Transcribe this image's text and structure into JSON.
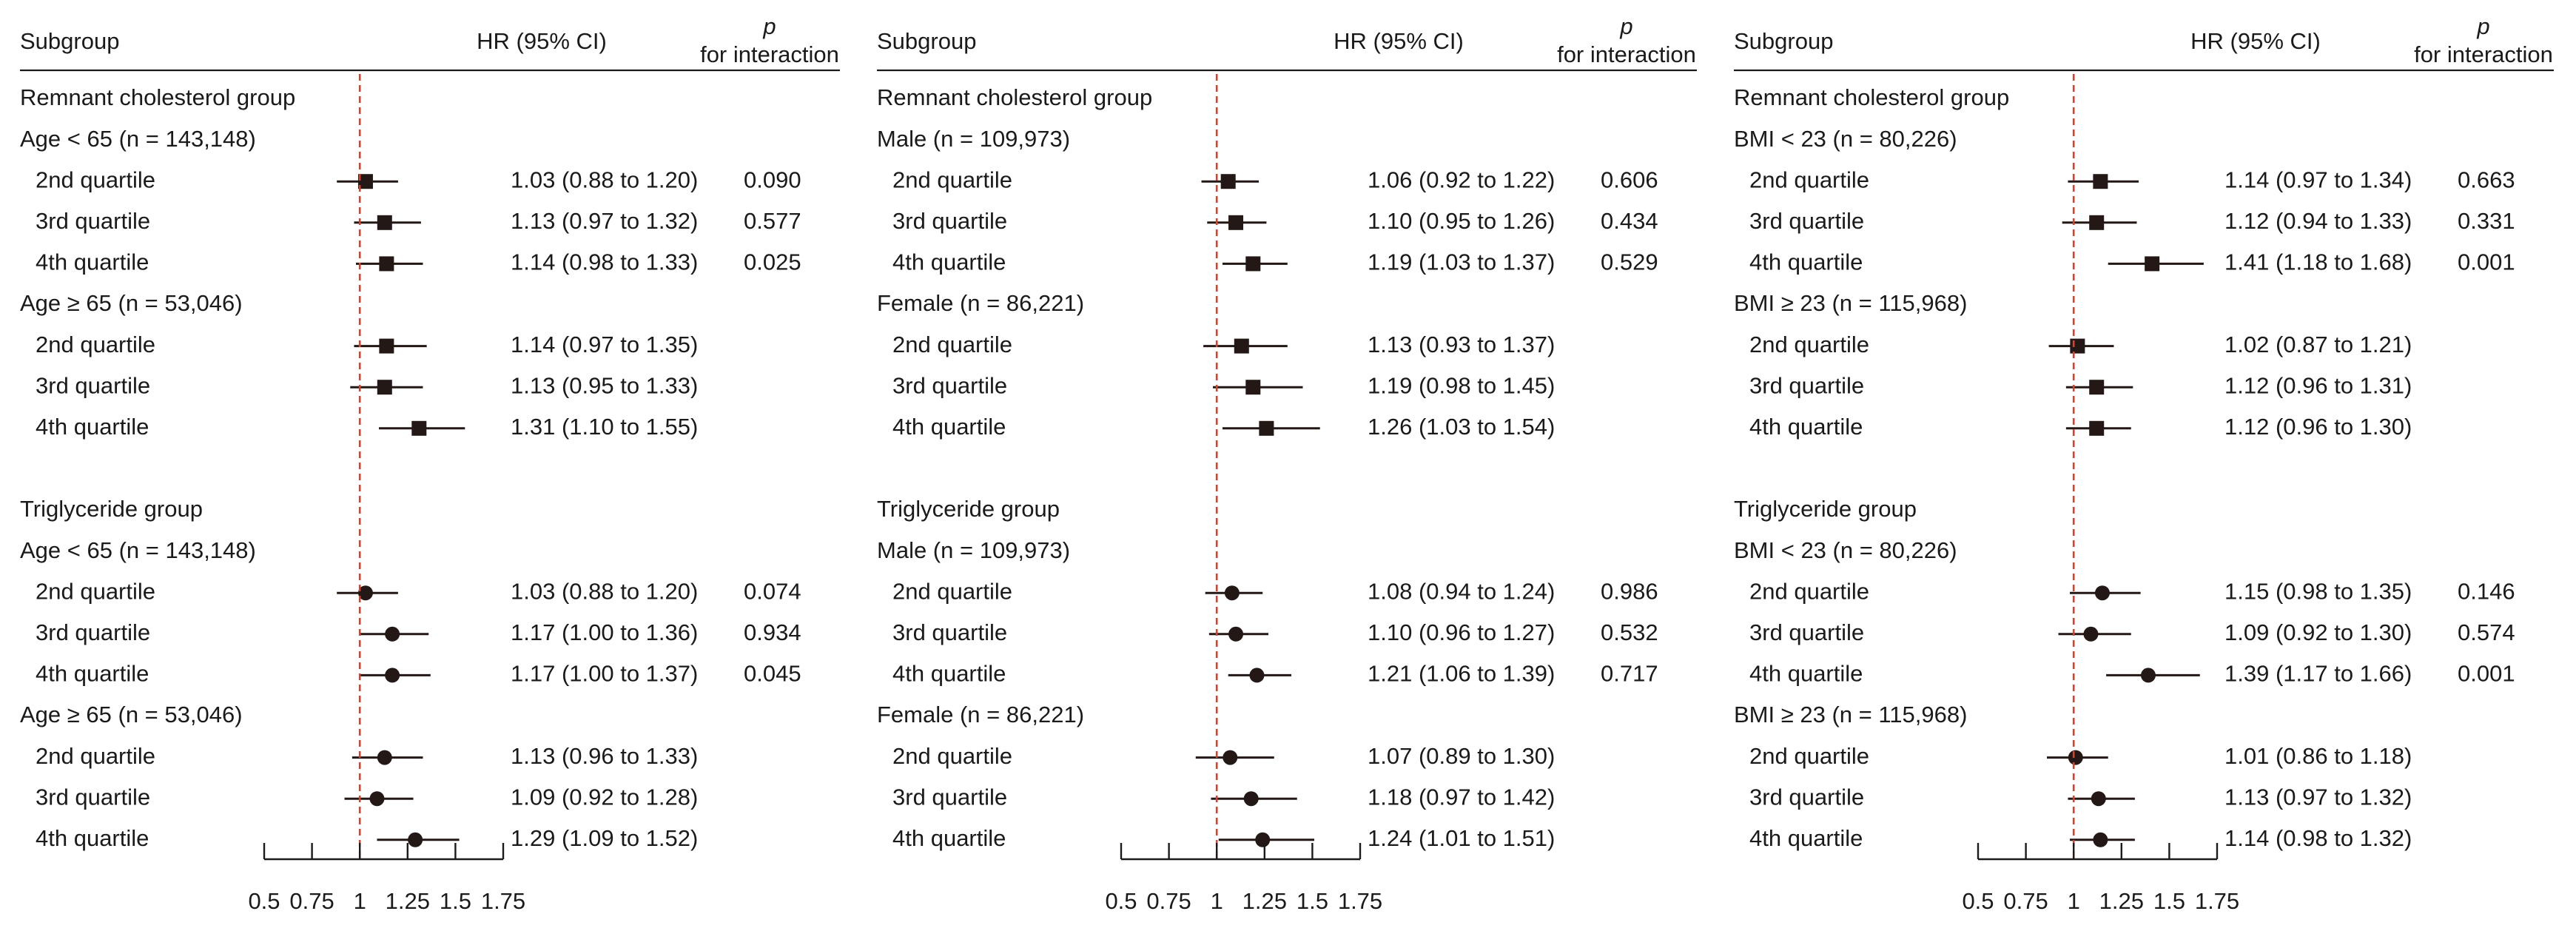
{
  "header": {
    "subgroup": "Subgroup",
    "hr": "HR (95% CI)",
    "p_symbol": "p",
    "p_label": "for interaction"
  },
  "axis_ticks": [
    "0.5",
    "0.75",
    "1",
    "1.25",
    "1.5",
    "1.75"
  ],
  "colors": {
    "reference_line": "#d9412b",
    "markers": "#231815"
  },
  "chart_data": [
    {
      "type": "forest",
      "xlim": [
        0.5,
        1.75
      ],
      "reference_value": 1,
      "rows": [
        {
          "kind": "group",
          "label": "Remnant cholesterol group"
        },
        {
          "kind": "header",
          "label": "Age < 65 (n = 143,148)"
        },
        {
          "kind": "est",
          "label": "2nd quartile",
          "marker": "square",
          "hr": 1.03,
          "lo": 0.88,
          "hi": 1.2,
          "ci": "1.03 (0.88 to 1.20)",
          "p": "0.090"
        },
        {
          "kind": "est",
          "label": "3rd quartile",
          "marker": "square",
          "hr": 1.13,
          "lo": 0.97,
          "hi": 1.32,
          "ci": "1.13 (0.97 to 1.32)",
          "p": "0.577"
        },
        {
          "kind": "est",
          "label": "4th quartile",
          "marker": "square",
          "hr": 1.14,
          "lo": 0.98,
          "hi": 1.33,
          "ci": "1.14 (0.98 to 1.33)",
          "p": "0.025"
        },
        {
          "kind": "header",
          "label": "Age ≥ 65 (n = 53,046)"
        },
        {
          "kind": "est",
          "label": "2nd quartile",
          "marker": "square",
          "hr": 1.14,
          "lo": 0.97,
          "hi": 1.35,
          "ci": "1.14 (0.97 to 1.35)",
          "p": ""
        },
        {
          "kind": "est",
          "label": "3rd quartile",
          "marker": "square",
          "hr": 1.13,
          "lo": 0.95,
          "hi": 1.33,
          "ci": "1.13 (0.95 to 1.33)",
          "p": ""
        },
        {
          "kind": "est",
          "label": "4th quartile",
          "marker": "square",
          "hr": 1.31,
          "lo": 1.1,
          "hi": 1.55,
          "ci": "1.31 (1.10 to 1.55)",
          "p": ""
        },
        {
          "kind": "blank"
        },
        {
          "kind": "group",
          "label": "Triglyceride group"
        },
        {
          "kind": "header",
          "label": "Age < 65 (n = 143,148)"
        },
        {
          "kind": "est",
          "label": "2nd quartile",
          "marker": "circle",
          "hr": 1.03,
          "lo": 0.88,
          "hi": 1.2,
          "ci": "1.03 (0.88 to 1.20)",
          "p": "0.074"
        },
        {
          "kind": "est",
          "label": "3rd quartile",
          "marker": "circle",
          "hr": 1.17,
          "lo": 1.0,
          "hi": 1.36,
          "ci": "1.17 (1.00 to 1.36)",
          "p": "0.934"
        },
        {
          "kind": "est",
          "label": "4th quartile",
          "marker": "circle",
          "hr": 1.17,
          "lo": 1.0,
          "hi": 1.37,
          "ci": "1.17 (1.00 to 1.37)",
          "p": "0.045"
        },
        {
          "kind": "header",
          "label": "Age ≥ 65 (n = 53,046)"
        },
        {
          "kind": "est",
          "label": "2nd quartile",
          "marker": "circle",
          "hr": 1.13,
          "lo": 0.96,
          "hi": 1.33,
          "ci": "1.13 (0.96 to 1.33)",
          "p": ""
        },
        {
          "kind": "est",
          "label": "3rd quartile",
          "marker": "circle",
          "hr": 1.09,
          "lo": 0.92,
          "hi": 1.28,
          "ci": "1.09 (0.92 to 1.28)",
          "p": ""
        },
        {
          "kind": "est",
          "label": "4th quartile",
          "marker": "circle",
          "hr": 1.29,
          "lo": 1.09,
          "hi": 1.52,
          "ci": "1.29 (1.09 to 1.52)",
          "p": ""
        }
      ]
    },
    {
      "type": "forest",
      "xlim": [
        0.5,
        1.75
      ],
      "reference_value": 1,
      "rows": [
        {
          "kind": "group",
          "label": "Remnant cholesterol group"
        },
        {
          "kind": "header",
          "label": "Male (n = 109,973)"
        },
        {
          "kind": "est",
          "label": "2nd quartile",
          "marker": "square",
          "hr": 1.06,
          "lo": 0.92,
          "hi": 1.22,
          "ci": "1.06 (0.92 to 1.22)",
          "p": "0.606"
        },
        {
          "kind": "est",
          "label": "3rd quartile",
          "marker": "square",
          "hr": 1.1,
          "lo": 0.95,
          "hi": 1.26,
          "ci": "1.10 (0.95 to 1.26)",
          "p": "0.434"
        },
        {
          "kind": "est",
          "label": "4th quartile",
          "marker": "square",
          "hr": 1.19,
          "lo": 1.03,
          "hi": 1.37,
          "ci": "1.19 (1.03 to 1.37)",
          "p": "0.529"
        },
        {
          "kind": "header",
          "label": "Female (n = 86,221)"
        },
        {
          "kind": "est",
          "label": "2nd quartile",
          "marker": "square",
          "hr": 1.13,
          "lo": 0.93,
          "hi": 1.37,
          "ci": "1.13 (0.93 to 1.37)",
          "p": ""
        },
        {
          "kind": "est",
          "label": "3rd quartile",
          "marker": "square",
          "hr": 1.19,
          "lo": 0.98,
          "hi": 1.45,
          "ci": "1.19 (0.98 to 1.45)",
          "p": ""
        },
        {
          "kind": "est",
          "label": "4th quartile",
          "marker": "square",
          "hr": 1.26,
          "lo": 1.03,
          "hi": 1.54,
          "ci": "1.26 (1.03 to 1.54)",
          "p": ""
        },
        {
          "kind": "blank"
        },
        {
          "kind": "group",
          "label": "Triglyceride group"
        },
        {
          "kind": "header",
          "label": "Male (n = 109,973)"
        },
        {
          "kind": "est",
          "label": "2nd quartile",
          "marker": "circle",
          "hr": 1.08,
          "lo": 0.94,
          "hi": 1.24,
          "ci": "1.08 (0.94 to 1.24)",
          "p": "0.986"
        },
        {
          "kind": "est",
          "label": "3rd quartile",
          "marker": "circle",
          "hr": 1.1,
          "lo": 0.96,
          "hi": 1.27,
          "ci": "1.10 (0.96 to 1.27)",
          "p": "0.532"
        },
        {
          "kind": "est",
          "label": "4th quartile",
          "marker": "circle",
          "hr": 1.21,
          "lo": 1.06,
          "hi": 1.39,
          "ci": "1.21 (1.06 to 1.39)",
          "p": "0.717"
        },
        {
          "kind": "header",
          "label": "Female (n = 86,221)"
        },
        {
          "kind": "est",
          "label": "2nd quartile",
          "marker": "circle",
          "hr": 1.07,
          "lo": 0.89,
          "hi": 1.3,
          "ci": "1.07 (0.89 to 1.30)",
          "p": ""
        },
        {
          "kind": "est",
          "label": "3rd quartile",
          "marker": "circle",
          "hr": 1.18,
          "lo": 0.97,
          "hi": 1.42,
          "ci": "1.18 (0.97 to 1.42)",
          "p": ""
        },
        {
          "kind": "est",
          "label": "4th quartile",
          "marker": "circle",
          "hr": 1.24,
          "lo": 1.01,
          "hi": 1.51,
          "ci": "1.24 (1.01 to 1.51)",
          "p": ""
        }
      ]
    },
    {
      "type": "forest",
      "xlim": [
        0.5,
        1.75
      ],
      "reference_value": 1,
      "rows": [
        {
          "kind": "group",
          "label": "Remnant cholesterol group"
        },
        {
          "kind": "header",
          "label": "BMI < 23 (n = 80,226)"
        },
        {
          "kind": "est",
          "label": "2nd quartile",
          "marker": "square",
          "hr": 1.14,
          "lo": 0.97,
          "hi": 1.34,
          "ci": "1.14 (0.97 to 1.34)",
          "p": "0.663"
        },
        {
          "kind": "est",
          "label": "3rd quartile",
          "marker": "square",
          "hr": 1.12,
          "lo": 0.94,
          "hi": 1.33,
          "ci": "1.12 (0.94 to 1.33)",
          "p": "0.331"
        },
        {
          "kind": "est",
          "label": "4th quartile",
          "marker": "square",
          "hr": 1.41,
          "lo": 1.18,
          "hi": 1.68,
          "ci": "1.41 (1.18 to 1.68)",
          "p": "0.001"
        },
        {
          "kind": "header",
          "label": "BMI ≥ 23 (n = 115,968)"
        },
        {
          "kind": "est",
          "label": "2nd quartile",
          "marker": "square",
          "hr": 1.02,
          "lo": 0.87,
          "hi": 1.21,
          "ci": "1.02 (0.87 to 1.21)",
          "p": ""
        },
        {
          "kind": "est",
          "label": "3rd quartile",
          "marker": "square",
          "hr": 1.12,
          "lo": 0.96,
          "hi": 1.31,
          "ci": "1.12 (0.96 to 1.31)",
          "p": ""
        },
        {
          "kind": "est",
          "label": "4th quartile",
          "marker": "square",
          "hr": 1.12,
          "lo": 0.96,
          "hi": 1.3,
          "ci": "1.12 (0.96 to 1.30)",
          "p": ""
        },
        {
          "kind": "blank"
        },
        {
          "kind": "group",
          "label": "Triglyceride group"
        },
        {
          "kind": "header",
          "label": "BMI < 23 (n = 80,226)"
        },
        {
          "kind": "est",
          "label": "2nd quartile",
          "marker": "circle",
          "hr": 1.15,
          "lo": 0.98,
          "hi": 1.35,
          "ci": "1.15 (0.98 to 1.35)",
          "p": "0.146"
        },
        {
          "kind": "est",
          "label": "3rd quartile",
          "marker": "circle",
          "hr": 1.09,
          "lo": 0.92,
          "hi": 1.3,
          "ci": "1.09 (0.92 to 1.30)",
          "p": "0.574"
        },
        {
          "kind": "est",
          "label": "4th quartile",
          "marker": "circle",
          "hr": 1.39,
          "lo": 1.17,
          "hi": 1.66,
          "ci": "1.39 (1.17 to 1.66)",
          "p": "0.001"
        },
        {
          "kind": "header",
          "label": "BMI ≥ 23 (n = 115,968)"
        },
        {
          "kind": "est",
          "label": "2nd quartile",
          "marker": "circle",
          "hr": 1.01,
          "lo": 0.86,
          "hi": 1.18,
          "ci": "1.01 (0.86 to 1.18)",
          "p": ""
        },
        {
          "kind": "est",
          "label": "3rd quartile",
          "marker": "circle",
          "hr": 1.13,
          "lo": 0.97,
          "hi": 1.32,
          "ci": "1.13 (0.97 to 1.32)",
          "p": ""
        },
        {
          "kind": "est",
          "label": "4th quartile",
          "marker": "circle",
          "hr": 1.14,
          "lo": 0.98,
          "hi": 1.32,
          "ci": "1.14 (0.98 to 1.32)",
          "p": ""
        }
      ]
    }
  ]
}
